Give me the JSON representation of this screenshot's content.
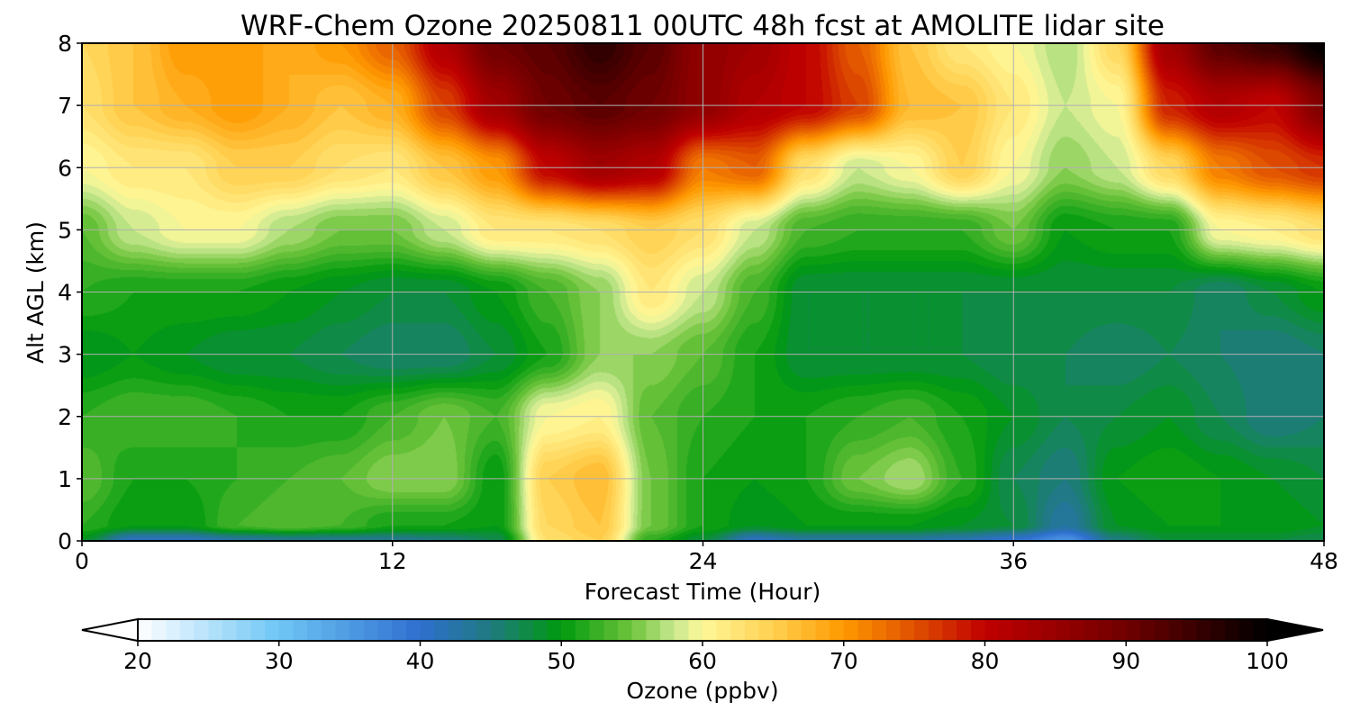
{
  "chart_data": {
    "type": "heatmap",
    "title": "WRF-Chem Ozone  20250811 00UTC 48h fcst at AMOLITE lidar site",
    "xlabel": "Forecast Time (Hour)",
    "ylabel": "Alt AGL (km)",
    "xlim": [
      0,
      48
    ],
    "ylim": [
      0,
      8
    ],
    "xticks": [
      0,
      12,
      24,
      36,
      48
    ],
    "yticks": [
      0,
      1,
      2,
      3,
      4,
      5,
      6,
      7,
      8
    ],
    "grid": true,
    "colorbar": {
      "label": "Ozone  (ppbv)",
      "min": 20,
      "max": 100,
      "ticks": [
        20,
        30,
        40,
        50,
        60,
        70,
        80,
        90,
        100
      ],
      "extend": "both",
      "stops": [
        {
          "v": 20,
          "c": "#ffffff"
        },
        {
          "v": 30,
          "c": "#6ec6f5"
        },
        {
          "v": 40,
          "c": "#2f6fd0"
        },
        {
          "v": 45,
          "c": "#1f7a80"
        },
        {
          "v": 50,
          "c": "#009a0e"
        },
        {
          "v": 55,
          "c": "#6fc43c"
        },
        {
          "v": 58,
          "c": "#c8e890"
        },
        {
          "v": 60,
          "c": "#fff899"
        },
        {
          "v": 65,
          "c": "#ffd050"
        },
        {
          "v": 70,
          "c": "#ff9900"
        },
        {
          "v": 75,
          "c": "#e05000"
        },
        {
          "v": 80,
          "c": "#c00000"
        },
        {
          "v": 90,
          "c": "#700000"
        },
        {
          "v": 100,
          "c": "#000000"
        }
      ]
    },
    "x": [
      0,
      2,
      4,
      6,
      8,
      10,
      12,
      14,
      16,
      18,
      20,
      22,
      24,
      26,
      28,
      30,
      32,
      34,
      36,
      38,
      40,
      42,
      44,
      46,
      48
    ],
    "y": [
      0,
      0.25,
      1,
      2,
      3,
      4,
      5,
      6,
      7,
      8
    ],
    "z": [
      [
        49,
        41,
        41,
        43,
        44,
        44,
        44,
        45,
        47,
        63,
        65,
        52,
        48,
        41,
        43,
        43,
        43,
        42,
        40,
        36,
        45,
        48,
        48,
        48,
        47
      ],
      [
        52,
        50,
        50,
        53,
        54,
        53,
        51,
        51,
        50,
        64,
        66,
        55,
        51,
        49,
        50,
        50,
        50,
        49,
        48,
        43,
        49,
        50,
        50,
        50,
        49
      ],
      [
        54,
        51,
        51,
        52,
        53,
        54,
        56,
        56,
        50,
        65,
        67,
        55,
        51,
        50,
        51,
        55,
        57,
        52,
        47,
        45,
        50,
        51,
        50,
        49,
        48
      ],
      [
        52,
        53,
        53,
        52,
        51,
        51,
        53,
        55,
        53,
        60,
        61,
        54,
        52,
        51,
        51,
        52,
        53,
        51,
        49,
        47,
        48,
        49,
        47,
        45,
        46
      ],
      [
        49,
        50,
        49,
        48,
        48,
        47,
        46,
        46,
        48,
        51,
        56,
        56,
        54,
        51,
        48,
        48,
        48,
        48,
        47,
        47,
        46,
        47,
        46,
        45,
        46
      ],
      [
        52,
        51,
        51,
        51,
        50,
        49,
        48,
        48,
        50,
        53,
        56,
        62,
        58,
        53,
        48,
        48,
        48,
        48,
        48,
        48,
        48,
        48,
        46,
        48,
        50
      ],
      [
        54,
        58,
        60,
        60,
        57,
        55,
        55,
        58,
        62,
        62,
        63,
        65,
        63,
        58,
        53,
        52,
        52,
        52,
        55,
        50,
        51,
        51,
        60,
        61,
        63
      ],
      [
        60,
        62,
        62,
        65,
        65,
        63,
        62,
        66,
        70,
        80,
        84,
        82,
        72,
        74,
        63,
        58,
        60,
        65,
        60,
        56,
        58,
        64,
        72,
        75,
        77
      ],
      [
        63,
        66,
        68,
        70,
        68,
        66,
        68,
        76,
        84,
        90,
        92,
        90,
        86,
        82,
        80,
        76,
        67,
        66,
        62,
        58,
        60,
        78,
        82,
        80,
        88
      ],
      [
        64,
        66,
        70,
        70,
        68,
        70,
        74,
        82,
        90,
        92,
        96,
        92,
        86,
        84,
        80,
        74,
        66,
        62,
        60,
        57,
        64,
        84,
        92,
        95,
        100
      ]
    ]
  }
}
